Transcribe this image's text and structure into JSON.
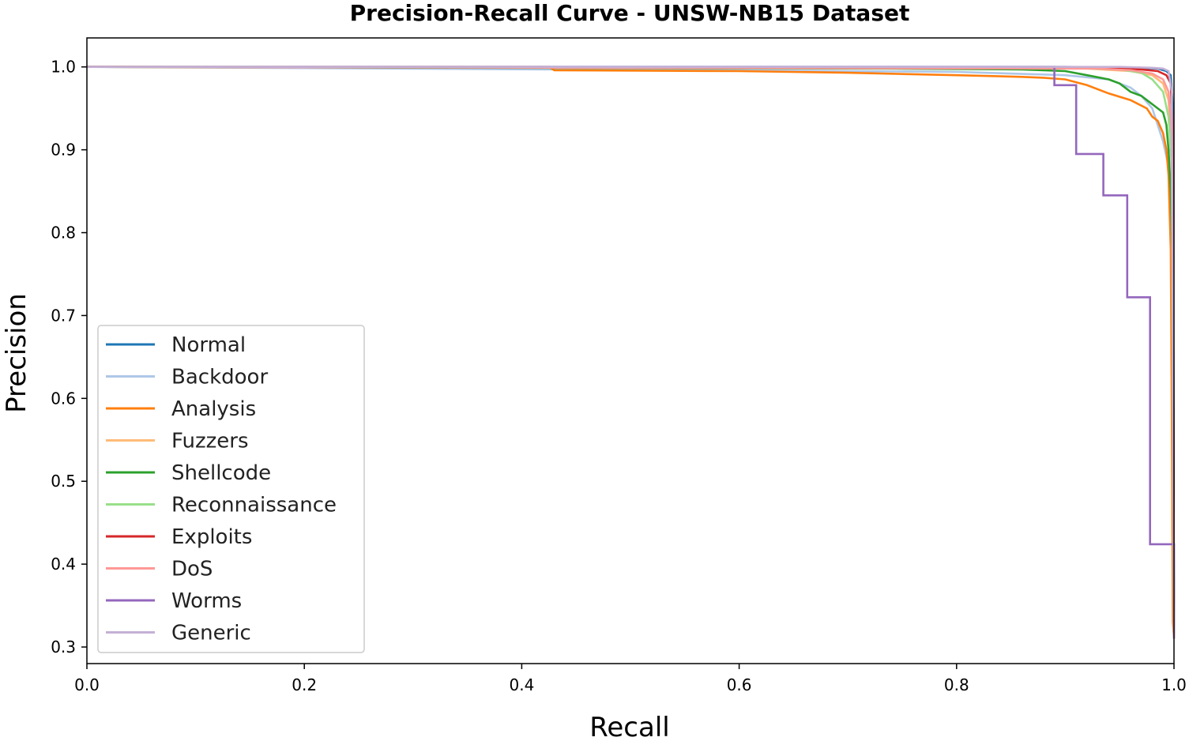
{
  "chart_data": {
    "type": "line",
    "title": "Precision-Recall Curve - UNSW-NB15 Dataset",
    "xlabel": "Recall",
    "ylabel": "Precision",
    "xlim": [
      0.0,
      1.0
    ],
    "ylim": [
      0.28,
      1.035
    ],
    "xticks": [
      "0.0",
      "0.2",
      "0.4",
      "0.6",
      "0.8",
      "1.0"
    ],
    "yticks": [
      "0.3",
      "0.4",
      "0.5",
      "0.6",
      "0.7",
      "0.8",
      "0.9",
      "1.0"
    ],
    "grid": false,
    "legend_position": "center-left",
    "series": [
      {
        "name": "Normal",
        "color": "#1f77b4",
        "x": [
          0,
          0.9,
          0.97,
          0.985,
          0.993,
          0.997,
          0.999,
          1.0
        ],
        "y": [
          1.0,
          1.0,
          0.999,
          0.998,
          0.995,
          0.99,
          0.95,
          0.31
        ]
      },
      {
        "name": "Backdoor",
        "color": "#aec7e8",
        "x": [
          0,
          0.43,
          0.6,
          0.8,
          0.9,
          0.94,
          0.96,
          0.97,
          0.98,
          0.985,
          0.99,
          0.995,
          0.998,
          1.0
        ],
        "y": [
          1.0,
          0.997,
          0.996,
          0.994,
          0.99,
          0.985,
          0.975,
          0.965,
          0.95,
          0.93,
          0.91,
          0.88,
          0.8,
          0.31
        ]
      },
      {
        "name": "Analysis",
        "color": "#ff7f0e",
        "x": [
          0,
          0.425,
          0.43,
          0.6,
          0.7,
          0.8,
          0.86,
          0.88,
          0.9,
          0.92,
          0.94,
          0.96,
          0.975,
          0.98,
          0.985,
          0.99,
          0.993,
          0.995,
          0.997,
          0.998,
          0.999,
          1.0
        ],
        "y": [
          1.0,
          1.0,
          0.996,
          0.995,
          0.993,
          0.99,
          0.988,
          0.987,
          0.985,
          0.978,
          0.968,
          0.96,
          0.95,
          0.94,
          0.935,
          0.92,
          0.9,
          0.87,
          0.78,
          0.59,
          0.33,
          0.31
        ]
      },
      {
        "name": "Fuzzers",
        "color": "#ffbb78",
        "x": [
          0,
          0.92,
          0.96,
          0.98,
          0.99,
          0.995,
          0.998,
          1.0
        ],
        "y": [
          1.0,
          0.998,
          0.995,
          0.99,
          0.98,
          0.96,
          0.9,
          0.31
        ]
      },
      {
        "name": "Shellcode",
        "color": "#2ca02c",
        "x": [
          0,
          0.74,
          0.86,
          0.9,
          0.92,
          0.94,
          0.95,
          0.96,
          0.97,
          0.98,
          0.99,
          0.993,
          0.995,
          0.997,
          0.998,
          0.999,
          1.0
        ],
        "y": [
          1.0,
          0.998,
          0.997,
          0.995,
          0.99,
          0.985,
          0.98,
          0.97,
          0.965,
          0.955,
          0.945,
          0.93,
          0.9,
          0.85,
          0.8,
          0.75,
          0.31
        ]
      },
      {
        "name": "Reconnaissance",
        "color": "#98df8a",
        "x": [
          0,
          0.9,
          0.95,
          0.97,
          0.98,
          0.99,
          0.995,
          0.998,
          1.0
        ],
        "y": [
          1.0,
          0.999,
          0.997,
          0.993,
          0.985,
          0.97,
          0.94,
          0.88,
          0.31
        ]
      },
      {
        "name": "Exploits",
        "color": "#d62728",
        "x": [
          0,
          0.93,
          0.97,
          0.985,
          0.993,
          0.997,
          0.999,
          1.0
        ],
        "y": [
          1.0,
          0.999,
          0.997,
          0.995,
          0.99,
          0.98,
          0.92,
          0.31
        ]
      },
      {
        "name": "DoS",
        "color": "#ff9896",
        "x": [
          0,
          0.93,
          0.96,
          0.98,
          0.99,
          0.995,
          0.998,
          1.0
        ],
        "y": [
          1.0,
          0.998,
          0.996,
          0.992,
          0.985,
          0.97,
          0.92,
          0.31
        ]
      },
      {
        "name": "Worms",
        "color": "#9467bd",
        "x": [
          0,
          0.89,
          0.89,
          0.91,
          0.91,
          0.935,
          0.935,
          0.957,
          0.957,
          0.978,
          0.978,
          1.0,
          1.0
        ],
        "y": [
          1.0,
          1.0,
          0.978,
          0.978,
          0.895,
          0.895,
          0.845,
          0.845,
          0.722,
          0.722,
          0.424,
          0.424,
          0.31
        ]
      },
      {
        "name": "Generic",
        "color": "#c5b0d5",
        "x": [
          0,
          0.95,
          0.98,
          0.99,
          0.995,
          0.998,
          1.0
        ],
        "y": [
          1.0,
          1.0,
          0.999,
          0.998,
          0.995,
          0.97,
          0.31
        ]
      }
    ]
  }
}
